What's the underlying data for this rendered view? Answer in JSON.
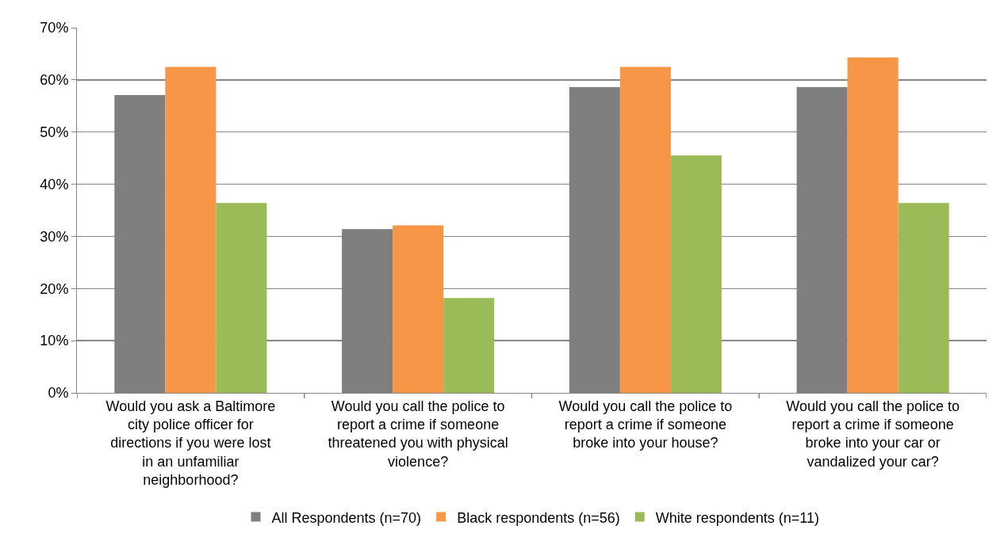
{
  "chart_data": {
    "type": "bar",
    "categories": [
      "Would you ask a Baltimore city police officer for directions if you were lost in an unfamiliar neighborhood?",
      "Would you call the police to report a crime if someone threatened you with physical violence?",
      "Would you call the police to report a crime if someone broke into your house?",
      "Would you call the police to report a crime if someone broke into your car or vandalized your car?"
    ],
    "series": [
      {
        "name": "All Respondents (n=70)",
        "color": "#7f7f7f",
        "values": [
          57.1,
          31.4,
          58.6,
          58.6
        ]
      },
      {
        "name": "Black respondents (n=56)",
        "color": "#f79646",
        "values": [
          62.5,
          32.1,
          62.5,
          64.3
        ]
      },
      {
        "name": "White respondents (n=11)",
        "color": "#9bbb59",
        "values": [
          36.4,
          18.2,
          45.5,
          36.4
        ]
      }
    ],
    "ylim": [
      0,
      70
    ],
    "yticks": [
      {
        "value": 0,
        "label": "0%"
      },
      {
        "value": 10,
        "label": "10%"
      },
      {
        "value": 20,
        "label": "20%"
      },
      {
        "value": 30,
        "label": "30%"
      },
      {
        "value": 40,
        "label": "40%"
      },
      {
        "value": 50,
        "label": "50%"
      },
      {
        "value": 60,
        "label": "60%"
      },
      {
        "value": 70,
        "label": "70%"
      }
    ],
    "grid": "y",
    "legend": "bottom"
  }
}
